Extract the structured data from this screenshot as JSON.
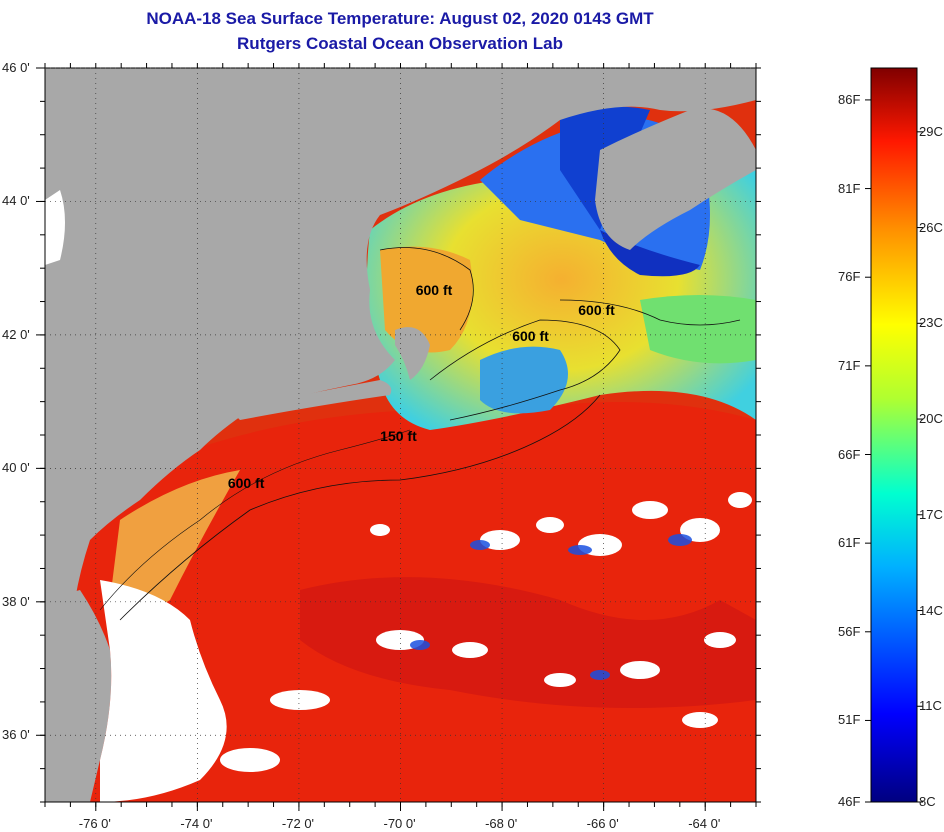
{
  "title": {
    "line1": "NOAA-18 Sea Surface Temperature:  August 02, 2020 0143 GMT",
    "line2": "Rutgers Coastal Ocean Observation Lab"
  },
  "map": {
    "lon_range": [
      -77,
      -63
    ],
    "lat_range": [
      35,
      46
    ],
    "lon_ticks": [
      {
        "v": -76,
        "label": "-76 0'"
      },
      {
        "v": -74,
        "label": "-74 0'"
      },
      {
        "v": -72,
        "label": "-72 0'"
      },
      {
        "v": -70,
        "label": "-70 0'"
      },
      {
        "v": -68,
        "label": "-68 0'"
      },
      {
        "v": -66,
        "label": "-66 0'"
      },
      {
        "v": -64,
        "label": "-64 0'"
      }
    ],
    "lat_ticks": [
      {
        "v": 46,
        "label": "46 0'"
      },
      {
        "v": 44,
        "label": "44 0'"
      },
      {
        "v": 42,
        "label": "42 0'"
      },
      {
        "v": 40,
        "label": "40 0'"
      },
      {
        "v": 38,
        "label": "38 0'"
      },
      {
        "v": 36,
        "label": "36 0'"
      }
    ],
    "contour_labels": [
      {
        "text": "600 ft",
        "lon": -73.4,
        "lat": 39.9
      },
      {
        "text": "150 ft",
        "lon": -70.4,
        "lat": 40.6
      },
      {
        "text": "600 ft",
        "lon": -67.8,
        "lat": 42.1
      },
      {
        "text": "600 ft",
        "lon": -66.5,
        "lat": 42.5
      },
      {
        "text": "600 ft",
        "lon": -69.7,
        "lat": 42.8
      }
    ],
    "colors": {
      "land": "#a8a8a8",
      "cloud": "#ffffff",
      "warm": "#e8240c",
      "cool": "#1f6fe0"
    }
  },
  "colorbar": {
    "min_c": 8,
    "max_c": 31,
    "fahrenheit_labels": [
      "86F",
      "81F",
      "76F",
      "71F",
      "66F",
      "61F",
      "56F",
      "51F",
      "46F"
    ],
    "celsius_labels": [
      "29C",
      "26C",
      "23C",
      "20C",
      "17C",
      "14C",
      "11C",
      "8C"
    ]
  }
}
